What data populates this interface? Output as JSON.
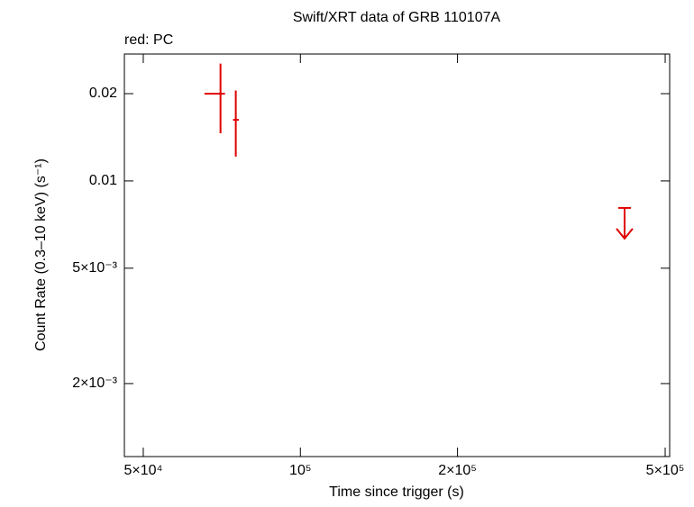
{
  "chart_data": {
    "type": "scatter",
    "title": "Swift/XRT data of GRB 110107A",
    "annotation": "red: PC",
    "x_label": "Time since trigger (s)",
    "y_label": "Count Rate (0.3–10 keV) (s⁻¹)",
    "log_x": true,
    "log_y": true,
    "grid": false,
    "xlim": [
      46000,
      510000
    ],
    "ylim": [
      0.00112,
      0.0274
    ],
    "xticks": [
      {
        "value": 50000,
        "label": "5×10⁴"
      },
      {
        "value": 100000,
        "label": "10⁵"
      },
      {
        "value": 200000,
        "label": "2×10⁵"
      },
      {
        "value": 500000,
        "label": "5×10⁵"
      }
    ],
    "yticks": [
      {
        "value": 0.002,
        "label": "2×10⁻³"
      },
      {
        "value": 0.005,
        "label": "5×10⁻³"
      },
      0.01,
      0.02
    ],
    "series": [
      {
        "color": "#e00000",
        "x": [
          70300,
          75200
        ],
        "x_low": [
          65500,
          74300
        ],
        "x_high": [
          71700,
          76200
        ],
        "y": [
          0.02,
          0.01625
        ],
        "y_low": [
          0.0146,
          0.01213
        ],
        "y_high": [
          0.0254,
          0.0205
        ]
      },
      {
        "color": "#e00000",
        "upper_limit": true,
        "x": [
          418000
        ],
        "y": [
          0.00807
        ]
      }
    ]
  }
}
